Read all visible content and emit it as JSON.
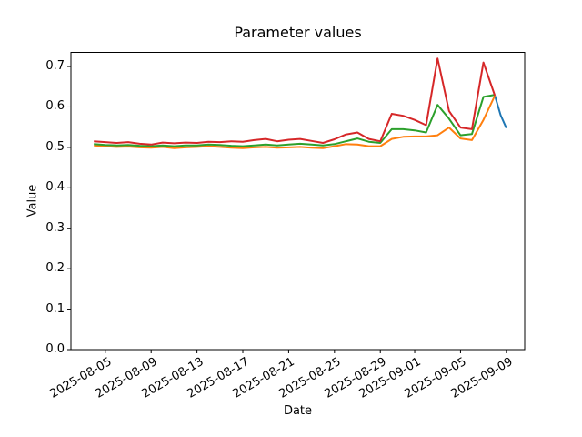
{
  "figure": {
    "background_color": "#ffffff",
    "axes_frame_color": "#000000"
  },
  "chart_data": {
    "type": "line",
    "title": "Parameter values",
    "xlabel": "Date",
    "ylabel": "Value",
    "grid": false,
    "legend": "none",
    "ylim": [
      0.0,
      0.735
    ],
    "xlim_day_index": [
      -2.0,
      37.6
    ],
    "y_ticks": [
      {
        "label": "0.0",
        "value": 0.0
      },
      {
        "label": "0.1",
        "value": 0.1
      },
      {
        "label": "0.2",
        "value": 0.2
      },
      {
        "label": "0.3",
        "value": 0.3
      },
      {
        "label": "0.4",
        "value": 0.4
      },
      {
        "label": "0.5",
        "value": 0.5
      },
      {
        "label": "0.6",
        "value": 0.6
      },
      {
        "label": "0.7",
        "value": 0.7
      }
    ],
    "x_ticks": [
      {
        "label": "2025-08-05",
        "day_index": 1
      },
      {
        "label": "2025-08-09",
        "day_index": 5
      },
      {
        "label": "2025-08-13",
        "day_index": 9
      },
      {
        "label": "2025-08-17",
        "day_index": 13
      },
      {
        "label": "2025-08-21",
        "day_index": 17
      },
      {
        "label": "2025-08-25",
        "day_index": 21
      },
      {
        "label": "2025-08-29",
        "day_index": 25
      },
      {
        "label": "2025-09-01",
        "day_index": 28
      },
      {
        "label": "2025-09-05",
        "day_index": 32
      },
      {
        "label": "2025-09-09",
        "day_index": 36
      }
    ],
    "dates": [
      "2025-08-04",
      "2025-08-05",
      "2025-08-06",
      "2025-08-07",
      "2025-08-08",
      "2025-08-09",
      "2025-08-10",
      "2025-08-11",
      "2025-08-12",
      "2025-08-13",
      "2025-08-14",
      "2025-08-15",
      "2025-08-16",
      "2025-08-17",
      "2025-08-18",
      "2025-08-19",
      "2025-08-20",
      "2025-08-21",
      "2025-08-22",
      "2025-08-23",
      "2025-08-24",
      "2025-08-25",
      "2025-08-26",
      "2025-08-27",
      "2025-08-28",
      "2025-08-29",
      "2025-08-30",
      "2025-08-31",
      "2025-09-01",
      "2025-09-02",
      "2025-09-03",
      "2025-09-04",
      "2025-09-05",
      "2025-09-06",
      "2025-09-07",
      "2025-09-08",
      "2025-09-09"
    ],
    "series": [
      {
        "name": "series-blue",
        "color": "#1f77b4",
        "x": [
          35,
          35.5,
          36
        ],
        "values": [
          0.628,
          0.58,
          0.548
        ]
      },
      {
        "name": "series-orange",
        "color": "#ff7f0e",
        "x_start_index": 0,
        "values": [
          0.505,
          0.503,
          0.501,
          0.502,
          0.5,
          0.499,
          0.501,
          0.498,
          0.5,
          0.501,
          0.503,
          0.501,
          0.499,
          0.498,
          0.5,
          0.501,
          0.499,
          0.5,
          0.501,
          0.499,
          0.498,
          0.503,
          0.508,
          0.507,
          0.503,
          0.503,
          0.521,
          0.526,
          0.527,
          0.527,
          0.53,
          0.549,
          0.522,
          0.518,
          0.568,
          0.628
        ]
      },
      {
        "name": "series-green",
        "color": "#2ca02c",
        "x_start_index": 0,
        "values": [
          0.508,
          0.506,
          0.505,
          0.506,
          0.504,
          0.503,
          0.505,
          0.503,
          0.505,
          0.505,
          0.507,
          0.506,
          0.504,
          0.503,
          0.505,
          0.507,
          0.505,
          0.507,
          0.509,
          0.507,
          0.505,
          0.508,
          0.515,
          0.522,
          0.514,
          0.511,
          0.545,
          0.545,
          0.542,
          0.537,
          0.605,
          0.571,
          0.53,
          0.533,
          0.625,
          0.63
        ]
      },
      {
        "name": "series-red",
        "color": "#d62728",
        "x_start_index": 0,
        "values": [
          0.515,
          0.513,
          0.511,
          0.513,
          0.509,
          0.507,
          0.512,
          0.51,
          0.512,
          0.511,
          0.514,
          0.513,
          0.515,
          0.514,
          0.518,
          0.521,
          0.515,
          0.519,
          0.521,
          0.516,
          0.511,
          0.52,
          0.532,
          0.537,
          0.521,
          0.515,
          0.583,
          0.578,
          0.568,
          0.555,
          0.72,
          0.59,
          0.549,
          0.545,
          0.71,
          0.628
        ]
      }
    ]
  }
}
